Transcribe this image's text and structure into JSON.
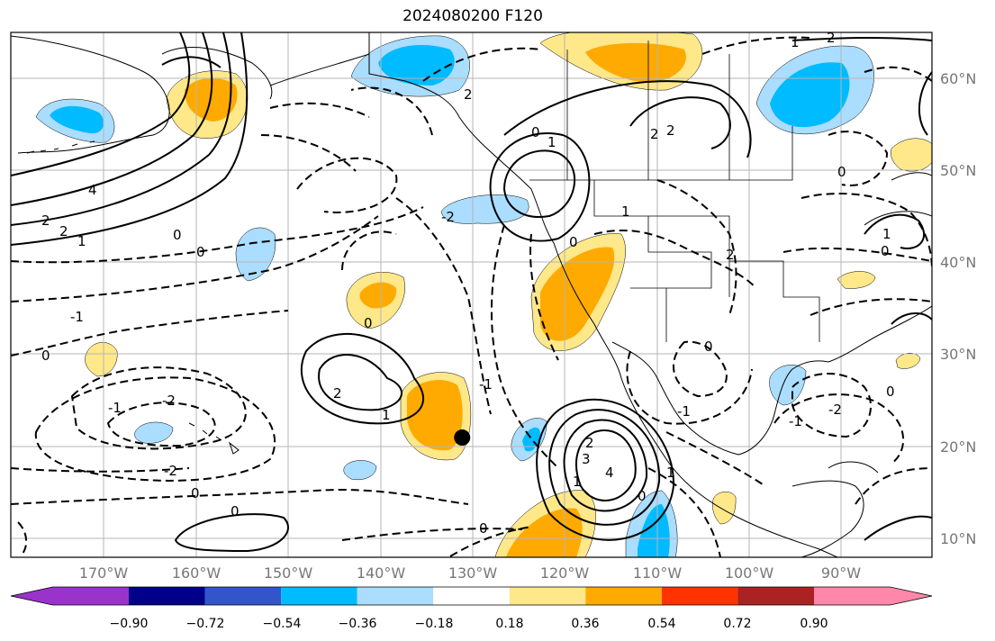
{
  "title": "2024080200 F120",
  "map": {
    "lon_range": [
      -180,
      -80
    ],
    "lat_range": [
      8,
      65
    ],
    "lon_ticks": [
      "170°W",
      "160°W",
      "150°W",
      "140°W",
      "130°W",
      "120°W",
      "110°W",
      "100°W",
      "90°W"
    ],
    "lat_ticks": [
      "60°N",
      "50°N",
      "40°N",
      "30°N",
      "20°N",
      "10°N"
    ],
    "gridlines": true,
    "marker": {
      "lon": -131,
      "lat": 21
    }
  },
  "colorbar": {
    "ticks": [
      "−0.90",
      "−0.72",
      "−0.54",
      "−0.36",
      "−0.18",
      "0.18",
      "0.36",
      "0.54",
      "0.72",
      "0.90"
    ],
    "colors": [
      "#9933cc",
      "#000088",
      "#3355cc",
      "#00bbff",
      "#aaddff",
      "#ffffff",
      "#ffe88a",
      "#ffaa00",
      "#ff3300",
      "#aa2222",
      "#ff88aa"
    ],
    "extend": "both"
  },
  "contour_labels": [
    "4",
    "2",
    "2",
    "1",
    "0",
    "0",
    "-1",
    "0",
    "-1",
    "-2",
    "-2",
    "0",
    "0",
    "2",
    "1",
    "0",
    "-1",
    "-2",
    "0",
    "2",
    "0",
    "1",
    "2",
    "2",
    "1",
    "2",
    "1",
    "0",
    "0",
    "0",
    "1",
    "2",
    "3",
    "4",
    "1",
    "0",
    "-1",
    "-2",
    "0",
    "-1",
    "0",
    "2",
    "1"
  ],
  "icons": {
    "marker": "black-dot-icon"
  }
}
